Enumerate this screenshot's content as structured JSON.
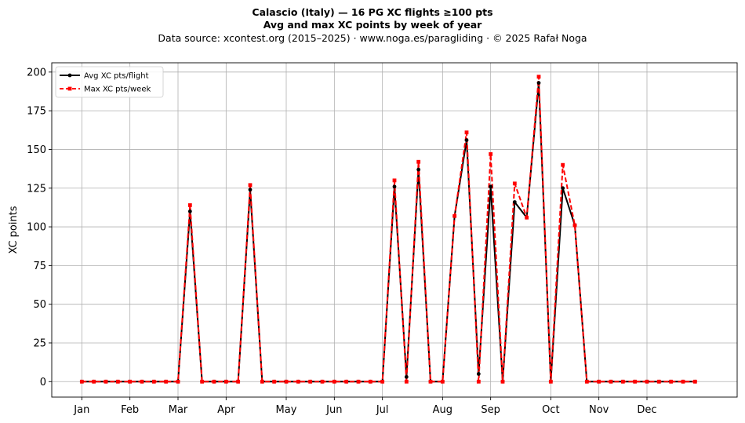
{
  "chart_data": {
    "type": "line",
    "title": "Calascio (Italy)  —  16 PG XC flights ≥100 pts",
    "subtitle": "Avg and max XC points by week of year",
    "source": "Data source: xcontest.org (2015–2025)  ·  www.noga.es/paragliding  ·  © 2025 Rafał Noga",
    "xlabel": "",
    "ylabel": "XC points",
    "ylim": [
      -10,
      206
    ],
    "xlim": [
      -2.5,
      54.5
    ],
    "yticks": [
      0,
      25,
      50,
      75,
      100,
      125,
      150,
      175,
      200
    ],
    "xticks": [
      {
        "week": 0,
        "label": "Jan"
      },
      {
        "week": 4,
        "label": "Feb"
      },
      {
        "week": 8,
        "label": "Mar"
      },
      {
        "week": 12,
        "label": "Apr"
      },
      {
        "week": 17,
        "label": "May"
      },
      {
        "week": 21,
        "label": "Jun"
      },
      {
        "week": 25,
        "label": "Jul"
      },
      {
        "week": 30,
        "label": "Aug"
      },
      {
        "week": 34,
        "label": "Sep"
      },
      {
        "week": 39,
        "label": "Oct"
      },
      {
        "week": 43,
        "label": "Nov"
      },
      {
        "week": 47,
        "label": "Dec"
      }
    ],
    "grid": true,
    "legend_position": "top-left",
    "x": [
      0,
      1,
      2,
      3,
      4,
      5,
      6,
      7,
      8,
      9,
      10,
      11,
      12,
      13,
      14,
      15,
      16,
      17,
      18,
      19,
      20,
      21,
      22,
      23,
      24,
      25,
      26,
      27,
      28,
      29,
      30,
      31,
      32,
      33,
      34,
      35,
      36,
      37,
      38,
      39,
      40,
      41,
      42,
      43,
      44,
      45,
      46,
      47,
      48,
      49,
      50,
      51
    ],
    "series": [
      {
        "name": "Avg XC pts/flight",
        "color": "#000000",
        "style": "solid",
        "marker": "circle",
        "values": [
          0,
          0,
          0,
          0,
          0,
          0,
          0,
          0,
          0,
          110,
          0,
          0,
          0,
          0,
          124,
          0,
          0,
          0,
          0,
          0,
          0,
          0,
          0,
          0,
          0,
          0,
          126,
          3,
          137,
          0,
          0,
          107,
          156,
          5,
          126,
          0,
          116,
          106,
          193,
          0,
          125,
          101,
          0,
          0,
          0,
          0,
          0,
          0,
          0,
          0,
          0,
          0
        ]
      },
      {
        "name": "Max XC pts/week",
        "color": "#ff0000",
        "style": "dashed",
        "marker": "square",
        "values": [
          0,
          0,
          0,
          0,
          0,
          0,
          0,
          0,
          0,
          114,
          0,
          0,
          0,
          0,
          127,
          0,
          0,
          0,
          0,
          0,
          0,
          0,
          0,
          0,
          0,
          0,
          130,
          0,
          142,
          0,
          0,
          107,
          161,
          0,
          147,
          0,
          128,
          106,
          197,
          0,
          140,
          101,
          0,
          0,
          0,
          0,
          0,
          0,
          0,
          0,
          0,
          0
        ]
      }
    ]
  }
}
